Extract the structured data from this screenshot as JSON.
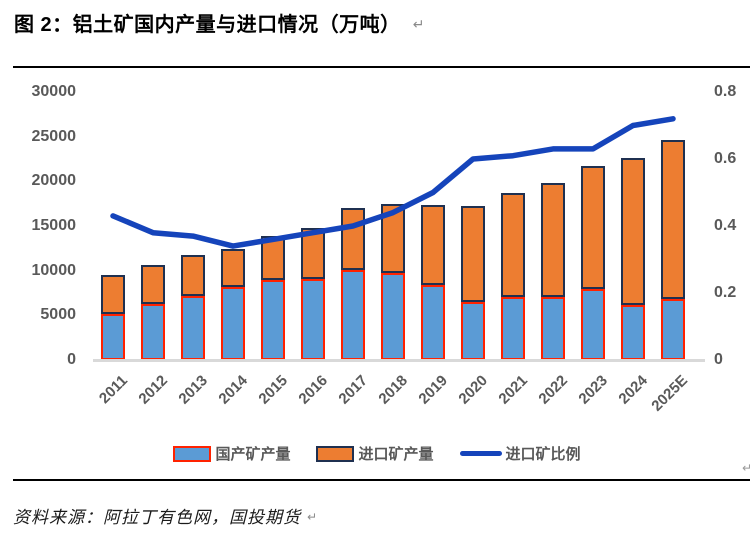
{
  "title": "图 2：铝土矿国内产量与进口情况（万吨）",
  "source": "资料来源：阿拉丁有色网，国投期货",
  "marks": {
    "after_title": "↵",
    "after_source": "↵",
    "row_end": "↵"
  },
  "chart_data": {
    "type": "bar",
    "subtype": "stacked-bar-with-line",
    "title": "铝土矿国内产量与进口情况（万吨）",
    "categories": [
      "2011",
      "2012",
      "2013",
      "2014",
      "2015",
      "2016",
      "2017",
      "2018",
      "2019",
      "2020",
      "2021",
      "2022",
      "2023",
      "2024",
      "2025E"
    ],
    "series": [
      {
        "name": "国产矿产量",
        "type": "bar",
        "axis": "left",
        "color": "#5B9BD5",
        "border_color": "#FF2200",
        "values": [
          5100,
          6300,
          7200,
          8200,
          8900,
          9100,
          10100,
          9700,
          8400,
          6500,
          7000,
          7000,
          7900,
          6200,
          6800
        ]
      },
      {
        "name": "进口矿产量",
        "type": "bar",
        "axis": "left",
        "color": "#ED7D31",
        "border_color": "#1F3050",
        "values": [
          4400,
          4300,
          4500,
          4200,
          5000,
          5700,
          6900,
          7800,
          9000,
          10700,
          11700,
          12800,
          13800,
          16400,
          17800
        ]
      },
      {
        "name": "进口矿比例",
        "type": "line",
        "axis": "right",
        "color": "#1544BB",
        "values": [
          0.43,
          0.38,
          0.37,
          0.34,
          0.36,
          0.38,
          0.4,
          0.44,
          0.5,
          0.6,
          0.61,
          0.63,
          0.63,
          0.7,
          0.72
        ]
      }
    ],
    "left_axis": {
      "min": 0,
      "max": 30000,
      "ticks": [
        0,
        5000,
        10000,
        15000,
        20000,
        25000,
        30000
      ],
      "labels": [
        "0",
        "5000",
        "10000",
        "15000",
        "20000",
        "25000",
        "30000"
      ]
    },
    "right_axis": {
      "min": 0,
      "max": 0.8,
      "ticks": [
        0,
        0.2,
        0.4,
        0.6,
        0.8
      ],
      "labels": [
        "0",
        "0.2",
        "0.4",
        "0.6",
        "0.8"
      ]
    },
    "grid": "off",
    "legend_position": "bottom"
  }
}
